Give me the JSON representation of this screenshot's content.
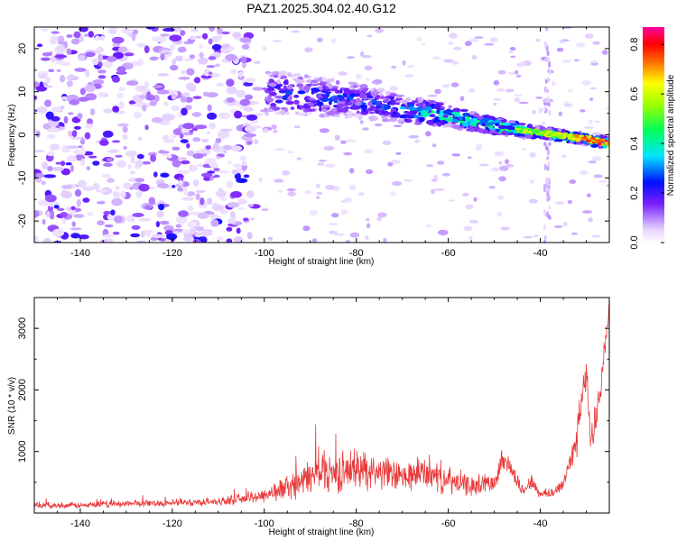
{
  "title": "PAZ1.2025.304.02.40.G12",
  "chart_data": [
    {
      "type": "heatmap",
      "xlabel": "Height of straight line (km)",
      "ylabel": "Frequency (Hz)",
      "xlim": [
        -150,
        -25
      ],
      "ylim": [
        -25,
        25
      ],
      "xticks": [
        -140,
        -120,
        -100,
        -80,
        -60,
        -40
      ],
      "xtick_labels": [
        "-140",
        "-120",
        "-100",
        "-80",
        "-60",
        "-40"
      ],
      "yticks": [
        -20,
        -10,
        0,
        10,
        20
      ],
      "ytick_labels": [
        "-20",
        "-10",
        "0",
        "10",
        "20"
      ],
      "colorbar": {
        "label": "Normalized spectral amplitude",
        "range": [
          0,
          0.87
        ],
        "ticks": [
          0,
          0.2,
          0.4,
          0.6,
          0.8
        ],
        "tick_labels": [
          "0.0",
          "0.2",
          "0.4",
          "0.6",
          "0.8"
        ],
        "colormap": "rainbow"
      },
      "ridge": {
        "description": "dominant signal frequency vs height",
        "height_km": [
          -100,
          -90,
          -80,
          -70,
          -60,
          -50,
          -40,
          -30,
          -25
        ],
        "frequency_hz": [
          10,
          9,
          8,
          6,
          4.5,
          2,
          0.5,
          -1,
          -2
        ],
        "peak_amplitude": [
          0.25,
          0.3,
          0.3,
          0.35,
          0.5,
          0.55,
          0.65,
          0.8,
          0.87
        ]
      },
      "noise_region_km": [
        -150,
        -105
      ]
    },
    {
      "type": "line",
      "xlabel": "Height of straight line (km)",
      "ylabel": "SNR (10 * v/v)",
      "xlim": [
        -150,
        -25
      ],
      "ylim": [
        0,
        3500
      ],
      "xticks": [
        -140,
        -120,
        -100,
        -80,
        -60,
        -40
      ],
      "xtick_labels": [
        "-140",
        "-120",
        "-100",
        "-80",
        "-60",
        "-40"
      ],
      "yticks": [
        1000,
        2000,
        3000
      ],
      "ytick_labels": [
        "1000",
        "2000",
        "3000"
      ],
      "series": [
        {
          "name": "SNR",
          "color": "#e83a3a",
          "x": [
            -150,
            -140,
            -130,
            -120,
            -110,
            -105,
            -100,
            -95,
            -90,
            -87,
            -85,
            -80,
            -75,
            -70,
            -65,
            -60,
            -55,
            -50,
            -48,
            -46,
            -44,
            -42,
            -40,
            -38,
            -35,
            -32,
            -30,
            -29,
            -27,
            -25
          ],
          "y": [
            120,
            120,
            150,
            160,
            180,
            220,
            280,
            400,
            550,
            700,
            600,
            700,
            650,
            550,
            650,
            500,
            420,
            500,
            900,
            650,
            350,
            500,
            300,
            300,
            450,
            1250,
            2300,
            1100,
            1950,
            3300
          ],
          "noise_amplitude": [
            60,
            60,
            70,
            70,
            80,
            100,
            150,
            250,
            350,
            450,
            400,
            400,
            350,
            300,
            350,
            280,
            200,
            200,
            250,
            200,
            150,
            150,
            120,
            120,
            150,
            400,
            300,
            300,
            300,
            200
          ]
        }
      ]
    }
  ]
}
